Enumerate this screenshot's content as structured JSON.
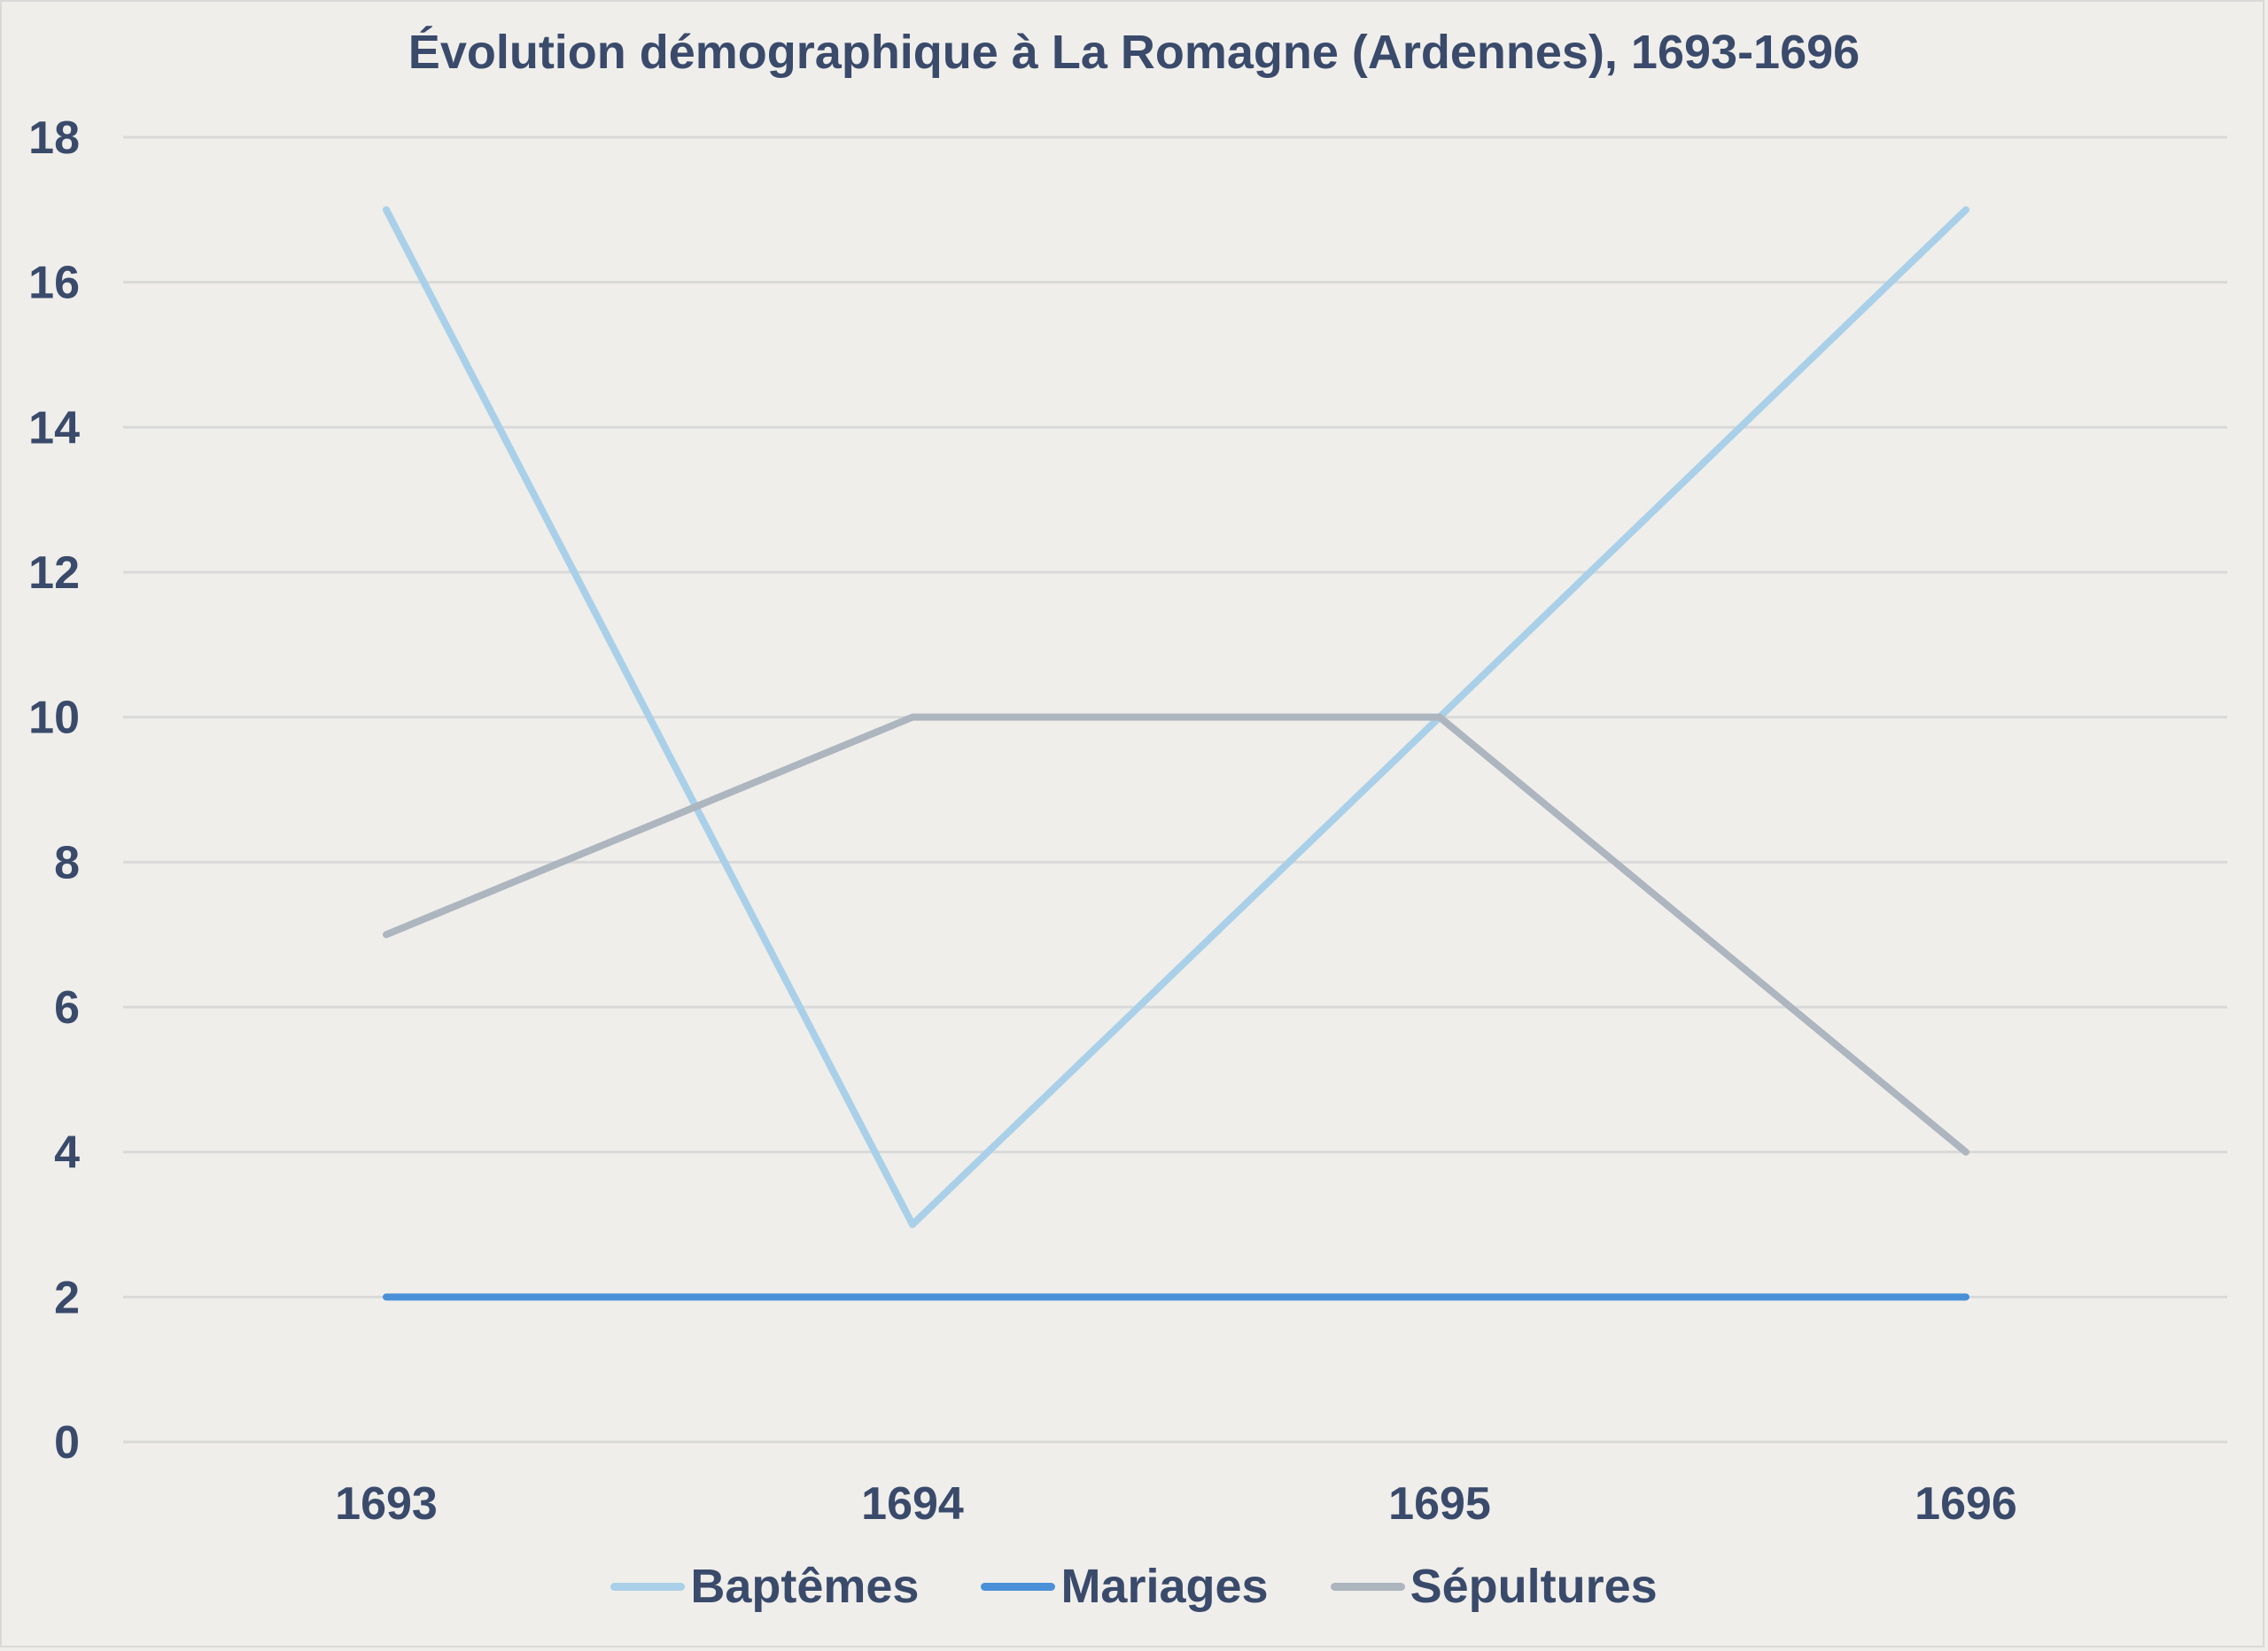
{
  "chart_data": {
    "type": "line",
    "title": "Évolution démographique à La Romagne (Ardennes), 1693-1696",
    "xlabel": "",
    "ylabel": "",
    "categories": [
      "1693",
      "1694",
      "1695",
      "1696"
    ],
    "series": [
      {
        "name": "Baptêmes",
        "color": "#a9d0e8",
        "values": [
          17,
          3,
          10,
          17
        ]
      },
      {
        "name": "Mariages",
        "color": "#4a90d9",
        "values": [
          2,
          2,
          2,
          2
        ]
      },
      {
        "name": "Sépultures",
        "color": "#adb5bf",
        "values": [
          7,
          10,
          10,
          4
        ]
      }
    ],
    "ylim": [
      0,
      18
    ],
    "yticks": [
      "0",
      "2",
      "4",
      "6",
      "8",
      "10",
      "12",
      "14",
      "16",
      "18"
    ],
    "grid": true,
    "legend_position": "bottom"
  },
  "colors": {
    "background": "#efeeea",
    "text": "#3a4a6b",
    "gridline": "#d9d9d9"
  }
}
